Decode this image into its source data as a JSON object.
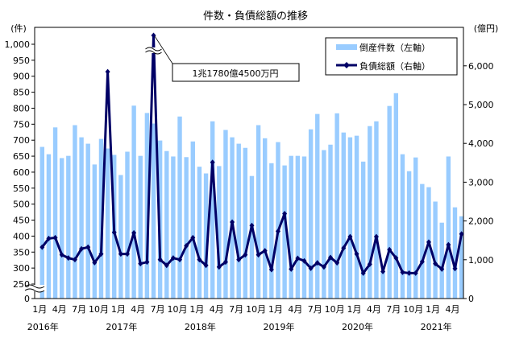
{
  "chart_data": {
    "type": "bar+line",
    "title": "件数・負債総額の推移",
    "left_axis": {
      "unit_label": "(件)",
      "ticks": [
        "0",
        "250",
        "300",
        "350",
        "400",
        "450",
        "500",
        "550",
        "600",
        "650",
        "700",
        "750",
        "800",
        "850",
        "900",
        "950",
        "1,000"
      ],
      "tick_values": [
        0,
        250,
        300,
        350,
        400,
        450,
        500,
        550,
        600,
        650,
        700,
        750,
        800,
        850,
        900,
        950,
        1000
      ],
      "range": [
        0,
        1000
      ],
      "break_between": [
        0,
        250
      ]
    },
    "right_axis": {
      "unit_label": "(億円)",
      "ticks": [
        "0",
        "1,000",
        "2,000",
        "3,000",
        "4,000",
        "5,000",
        "6,000"
      ],
      "tick_values": [
        0,
        1000,
        2000,
        3000,
        4000,
        5000,
        6000
      ],
      "range": [
        0,
        7000
      ]
    },
    "x_labels": [
      {
        "index": 0,
        "label": "1月",
        "year": "2016年"
      },
      {
        "index": 3,
        "label": "4月"
      },
      {
        "index": 6,
        "label": "7月"
      },
      {
        "index": 9,
        "label": "10月"
      },
      {
        "index": 12,
        "label": "1月",
        "year": "2017年"
      },
      {
        "index": 15,
        "label": "4月"
      },
      {
        "index": 18,
        "label": "7月"
      },
      {
        "index": 21,
        "label": "10月"
      },
      {
        "index": 24,
        "label": "1月",
        "year": "2018年"
      },
      {
        "index": 27,
        "label": "4月"
      },
      {
        "index": 30,
        "label": "7月"
      },
      {
        "index": 33,
        "label": "10月"
      },
      {
        "index": 36,
        "label": "1月",
        "year": "2019年"
      },
      {
        "index": 39,
        "label": "4月"
      },
      {
        "index": 42,
        "label": "7月"
      },
      {
        "index": 45,
        "label": "10月"
      },
      {
        "index": 48,
        "label": "1月",
        "year": "2020年"
      },
      {
        "index": 51,
        "label": "4月"
      },
      {
        "index": 54,
        "label": "7月"
      },
      {
        "index": 57,
        "label": "10月"
      },
      {
        "index": 60,
        "label": "1月",
        "year": "2021年"
      },
      {
        "index": 63,
        "label": "4月"
      }
    ],
    "series": [
      {
        "name": "倒産件数（左軸）",
        "type": "bar",
        "axis": "left",
        "color": "#99ccff",
        "values": [
          679,
          656,
          740,
          644,
          651,
          747,
          709,
          689,
          624,
          704,
          674,
          654,
          591,
          664,
          808,
          651,
          785,
          752,
          699,
          666,
          649,
          774,
          647,
          696,
          617,
          596,
          759,
          619,
          732,
          709,
          689,
          676,
          588,
          747,
          706,
          628,
          694,
          621,
          651,
          651,
          649,
          734,
          782,
          669,
          686,
          784,
          724,
          709,
          714,
          633,
          744,
          759,
          290,
          807,
          847,
          656,
          603,
          646,
          563,
          553,
          508,
          442,
          649,
          490,
          462
        ]
      },
      {
        "name": "負債総額（右軸）",
        "type": "line",
        "axis": "right",
        "color": "#000066",
        "values": [
          1324,
          1547,
          1568,
          1129,
          1045,
          1003,
          1282,
          1324,
          927,
          1150,
          5847,
          1707,
          1150,
          1150,
          1693,
          899,
          941,
          11780,
          1003,
          857,
          1045,
          1003,
          1359,
          1568,
          1003,
          857,
          3512,
          815,
          941,
          1972,
          1003,
          1129,
          1882,
          1129,
          1233,
          746,
          1735,
          2188,
          760,
          1038,
          969,
          780,
          920,
          815,
          1059,
          920,
          1303,
          1596,
          1150,
          655,
          885,
          1596,
          697,
          1261,
          1045,
          676,
          655,
          655,
          948,
          1456,
          899,
          760,
          1387,
          774,
          1666
        ]
      }
    ],
    "annotation": {
      "text": "1兆1780億4500万円",
      "point_index": 17
    },
    "legend": {
      "placement": "top-right"
    },
    "grid": false
  }
}
